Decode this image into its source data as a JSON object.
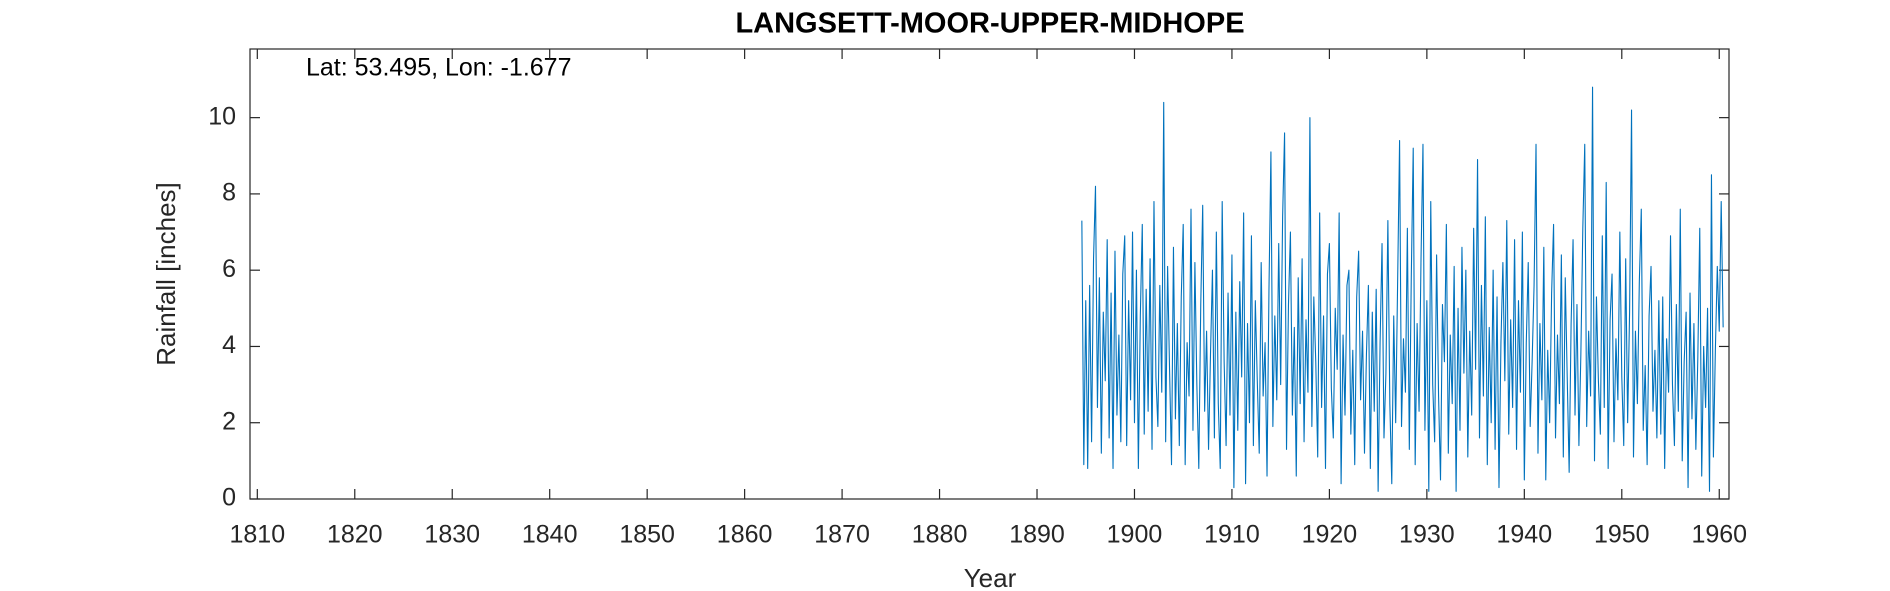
{
  "chart_data": {
    "type": "line",
    "title": "LANGSETT-MOOR-UPPER-MIDHOPE",
    "annotation": "Lat: 53.495, Lon: -1.677",
    "x_label": "Year",
    "y_label": "Rainfall [inches]",
    "xlim": [
      1809.25,
      1961
    ],
    "ylim": [
      0,
      11.8
    ],
    "xticks": [
      1810,
      1820,
      1830,
      1840,
      1850,
      1860,
      1870,
      1880,
      1890,
      1900,
      1910,
      1920,
      1930,
      1940,
      1950,
      1960
    ],
    "yticks": [
      0,
      2,
      4,
      6,
      8,
      10
    ],
    "x": [
      1894.6,
      1894.8,
      1895,
      1895.2,
      1895.4,
      1895.6,
      1895.8,
      1896,
      1896.2,
      1896.4,
      1896.6,
      1896.8,
      1897,
      1897.2,
      1897.4,
      1897.6,
      1897.8,
      1898,
      1898.2,
      1898.4,
      1898.6,
      1898.8,
      1899,
      1899.2,
      1899.4,
      1899.6,
      1899.8,
      1900,
      1900.2,
      1900.4,
      1900.6,
      1900.8,
      1901,
      1901.2,
      1901.4,
      1901.6,
      1901.8,
      1902,
      1902.2,
      1902.4,
      1902.6,
      1902.8,
      1903,
      1903.2,
      1903.4,
      1903.6,
      1903.8,
      1904,
      1904.2,
      1904.4,
      1904.6,
      1904.8,
      1905,
      1905.2,
      1905.4,
      1905.6,
      1905.8,
      1906,
      1906.2,
      1906.4,
      1906.6,
      1906.8,
      1907,
      1907.2,
      1907.4,
      1907.6,
      1907.8,
      1908,
      1908.2,
      1908.4,
      1908.6,
      1908.8,
      1909,
      1909.2,
      1909.4,
      1909.6,
      1909.8,
      1910,
      1910.2,
      1910.4,
      1910.6,
      1910.8,
      1911,
      1911.2,
      1911.4,
      1911.6,
      1911.8,
      1912,
      1912.2,
      1912.4,
      1912.6,
      1912.8,
      1913,
      1913.2,
      1913.4,
      1913.6,
      1913.8,
      1914,
      1914.2,
      1914.4,
      1914.6,
      1914.8,
      1915,
      1915.2,
      1915.4,
      1915.6,
      1915.8,
      1916,
      1916.2,
      1916.4,
      1916.6,
      1916.8,
      1917,
      1917.2,
      1917.4,
      1917.6,
      1917.8,
      1918,
      1918.2,
      1918.4,
      1918.6,
      1918.8,
      1919,
      1919.2,
      1919.4,
      1919.6,
      1919.8,
      1920,
      1920.2,
      1920.4,
      1920.6,
      1920.8,
      1921,
      1921.2,
      1921.4,
      1921.6,
      1921.8,
      1922,
      1922.2,
      1922.4,
      1922.6,
      1922.8,
      1923,
      1923.2,
      1923.4,
      1923.6,
      1923.8,
      1924,
      1924.2,
      1924.4,
      1924.6,
      1924.8,
      1925,
      1925.2,
      1925.4,
      1925.6,
      1925.8,
      1926,
      1926.2,
      1926.4,
      1926.6,
      1926.8,
      1927,
      1927.2,
      1927.4,
      1927.6,
      1927.8,
      1928,
      1928.2,
      1928.4,
      1928.6,
      1928.8,
      1929,
      1929.2,
      1929.4,
      1929.6,
      1929.8,
      1930,
      1930.2,
      1930.4,
      1930.6,
      1930.8,
      1931,
      1931.2,
      1931.4,
      1931.6,
      1931.8,
      1932,
      1932.2,
      1932.4,
      1932.6,
      1932.8,
      1933,
      1933.2,
      1933.4,
      1933.6,
      1933.8,
      1934,
      1934.2,
      1934.4,
      1934.6,
      1934.8,
      1935,
      1935.2,
      1935.4,
      1935.6,
      1935.8,
      1936,
      1936.2,
      1936.4,
      1936.6,
      1936.8,
      1937,
      1937.2,
      1937.4,
      1937.6,
      1937.8,
      1938,
      1938.2,
      1938.4,
      1938.6,
      1938.8,
      1939,
      1939.2,
      1939.4,
      1939.6,
      1939.8,
      1940,
      1940.2,
      1940.4,
      1940.6,
      1940.8,
      1941,
      1941.2,
      1941.4,
      1941.6,
      1941.8,
      1942,
      1942.2,
      1942.4,
      1942.6,
      1942.8,
      1943,
      1943.2,
      1943.4,
      1943.6,
      1943.8,
      1944,
      1944.2,
      1944.4,
      1944.6,
      1944.8,
      1945,
      1945.2,
      1945.4,
      1945.6,
      1945.8,
      1946,
      1946.2,
      1946.4,
      1946.6,
      1946.8,
      1947,
      1947.2,
      1947.4,
      1947.6,
      1947.8,
      1948,
      1948.2,
      1948.4,
      1948.6,
      1948.8,
      1949,
      1949.2,
      1949.4,
      1949.6,
      1949.8,
      1950,
      1950.2,
      1950.4,
      1950.6,
      1950.8,
      1951,
      1951.2,
      1951.4,
      1951.6,
      1951.8,
      1952,
      1952.2,
      1952.4,
      1952.6,
      1952.8,
      1953,
      1953.2,
      1953.4,
      1953.6,
      1953.8,
      1954,
      1954.2,
      1954.4,
      1954.6,
      1954.8,
      1955,
      1955.2,
      1955.4,
      1955.6,
      1955.8,
      1956,
      1956.2,
      1956.4,
      1956.6,
      1956.8,
      1957,
      1957.2,
      1957.4,
      1957.6,
      1957.8,
      1958,
      1958.2,
      1958.4,
      1958.6,
      1958.8,
      1959,
      1959.2,
      1959.4,
      1959.6,
      1959.8,
      1960,
      1960.2,
      1960.4
    ],
    "series": [
      {
        "color": "#0072bd",
        "values": [
          7.3,
          0.9,
          5.2,
          0.8,
          5.6,
          1.5,
          6.3,
          8.2,
          2.4,
          5.8,
          1.2,
          4.9,
          3.1,
          6.8,
          1.6,
          5.4,
          0.8,
          6.5,
          2.2,
          4.3,
          1.5,
          5.9,
          6.9,
          1.4,
          5.2,
          2.6,
          7.0,
          2.0,
          6.0,
          0.8,
          4.8,
          7.2,
          1.7,
          5.5,
          2.3,
          6.3,
          1.3,
          7.8,
          3.2,
          1.9,
          5.6,
          2.8,
          10.4,
          1.5,
          6.1,
          3.4,
          0.9,
          6.6,
          2.1,
          4.6,
          1.4,
          5.3,
          7.2,
          0.9,
          4.1,
          2.7,
          7.6,
          1.8,
          6.2,
          3.0,
          0.8,
          5.1,
          7.7,
          2.3,
          4.4,
          1.3,
          3.8,
          6.0,
          1.6,
          7.0,
          2.5,
          0.8,
          7.8,
          3.6,
          1.4,
          5.4,
          2.2,
          6.4,
          0.3,
          4.9,
          1.8,
          5.7,
          3.2,
          7.5,
          0.4,
          4.6,
          2.0,
          6.9,
          1.4,
          5.2,
          3.1,
          1.2,
          6.2,
          2.7,
          4.1,
          0.6,
          5.5,
          9.1,
          1.9,
          4.8,
          2.6,
          6.7,
          3.0,
          7.4,
          9.6,
          1.3,
          5.1,
          7.0,
          2.2,
          4.5,
          0.6,
          5.8,
          2.5,
          6.3,
          1.5,
          4.7,
          2.8,
          10.0,
          1.9,
          5.3,
          3.6,
          1.1,
          7.5,
          2.4,
          4.8,
          0.8,
          5.9,
          6.7,
          2.9,
          1.6,
          5.0,
          3.4,
          7.5,
          0.4,
          4.3,
          2.2,
          5.6,
          6.0,
          1.7,
          3.9,
          0.9,
          5.3,
          6.5,
          2.6,
          4.4,
          1.2,
          3.8,
          5.6,
          0.8,
          4.9,
          2.3,
          5.5,
          0.2,
          4.1,
          6.7,
          1.6,
          3.3,
          7.3,
          2.5,
          0.4,
          4.8,
          2.0,
          5.7,
          9.4,
          1.9,
          4.2,
          2.8,
          7.1,
          1.3,
          5.8,
          9.2,
          0.9,
          4.6,
          2.3,
          6.3,
          9.3,
          1.8,
          5.2,
          0.2,
          7.8,
          3.0,
          1.5,
          6.4,
          2.7,
          0.5,
          5.1,
          3.6,
          7.2,
          1.2,
          4.3,
          2.5,
          6.1,
          0.2,
          5.0,
          1.8,
          6.6,
          3.3,
          6.0,
          1.1,
          4.4,
          2.2,
          7.1,
          3.4,
          8.9,
          1.6,
          5.6,
          2.7,
          7.4,
          0.9,
          4.5,
          2.0,
          6.0,
          1.3,
          5.3,
          0.3,
          4.1,
          6.2,
          3.1,
          7.3,
          1.7,
          4.7,
          2.4,
          6.8,
          1.3,
          5.2,
          2.8,
          7.0,
          0.5,
          4.1,
          6.2,
          1.9,
          3.6,
          5.6,
          9.3,
          1.2,
          4.6,
          2.6,
          6.6,
          0.5,
          3.9,
          2.0,
          5.4,
          7.2,
          1.6,
          4.3,
          2.5,
          6.4,
          1.1,
          5.8,
          3.2,
          0.7,
          4.6,
          6.8,
          2.2,
          5.1,
          1.4,
          3.8,
          7.1,
          9.3,
          1.9,
          4.4,
          2.7,
          10.8,
          1.0,
          5.3,
          3.1,
          1.7,
          6.9,
          2.4,
          8.3,
          0.8,
          4.7,
          5.9,
          1.5,
          4.2,
          2.6,
          7.0,
          3.2,
          1.4,
          6.3,
          2.0,
          4.9,
          10.2,
          1.1,
          4.4,
          2.5,
          5.7,
          7.6,
          1.8,
          3.5,
          0.9,
          4.8,
          6.1,
          2.3,
          3.9,
          1.6,
          5.2,
          1.7,
          5.3,
          0.8,
          4.2,
          2.8,
          6.9,
          3.0,
          1.4,
          5.1,
          2.3,
          7.6,
          1.0,
          3.6,
          4.9,
          0.3,
          5.4,
          2.1,
          4.6,
          1.3,
          3.7,
          7.1,
          0.6,
          4.0,
          2.4,
          5.0,
          0.2,
          8.5,
          1.1,
          3.9,
          6.1,
          4.4,
          7.8,
          4.5
        ]
      }
    ]
  }
}
